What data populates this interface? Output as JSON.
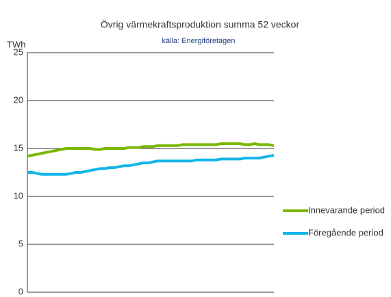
{
  "chart_data": {
    "type": "line",
    "title": "Övrig värmekraftsproduktion  summa 52 veckor",
    "subtitle": "källa: Energiföretagen",
    "y_label": "TWh",
    "categories": [
      null,
      null,
      null,
      null,
      null,
      null,
      null,
      null,
      null,
      null,
      null,
      null,
      null,
      null,
      null,
      null,
      null,
      null,
      null,
      null,
      null,
      null,
      null,
      null,
      null,
      null,
      null,
      null,
      null,
      null,
      null,
      null,
      null,
      null,
      null,
      null,
      null,
      null,
      null,
      null,
      null,
      null,
      null,
      null,
      null,
      null,
      null,
      null,
      null,
      null,
      null,
      null
    ],
    "series": [
      {
        "name": "Innevarande period",
        "color": "#7ab800",
        "values": [
          14.2,
          14.3,
          14.4,
          14.5,
          14.6,
          14.7,
          14.8,
          14.9,
          15.0,
          15.0,
          15.0,
          15.0,
          15.0,
          15.0,
          14.9,
          14.9,
          15.0,
          15.0,
          15.0,
          15.0,
          15.0,
          15.1,
          15.1,
          15.1,
          15.2,
          15.2,
          15.2,
          15.3,
          15.3,
          15.3,
          15.3,
          15.3,
          15.4,
          15.4,
          15.4,
          15.4,
          15.4,
          15.4,
          15.4,
          15.4,
          15.5,
          15.5,
          15.5,
          15.5,
          15.5,
          15.4,
          15.4,
          15.5,
          15.4,
          15.4,
          15.4,
          15.3
        ]
      },
      {
        "name": "Föregående period",
        "color": "#13b5ea",
        "values": [
          12.5,
          12.5,
          12.4,
          12.3,
          12.3,
          12.3,
          12.3,
          12.3,
          12.3,
          12.4,
          12.5,
          12.5,
          12.6,
          12.7,
          12.8,
          12.9,
          12.9,
          13.0,
          13.0,
          13.1,
          13.2,
          13.2,
          13.3,
          13.4,
          13.5,
          13.5,
          13.6,
          13.7,
          13.7,
          13.7,
          13.7,
          13.7,
          13.7,
          13.7,
          13.7,
          13.8,
          13.8,
          13.8,
          13.8,
          13.8,
          13.9,
          13.9,
          13.9,
          13.9,
          13.9,
          14.0,
          14.0,
          14.0,
          14.0,
          14.1,
          14.2,
          14.3
        ]
      }
    ],
    "ylim": [
      0,
      25
    ],
    "yticks": [
      0,
      5,
      10,
      15,
      20,
      25
    ],
    "grid": true,
    "legend": "right"
  }
}
